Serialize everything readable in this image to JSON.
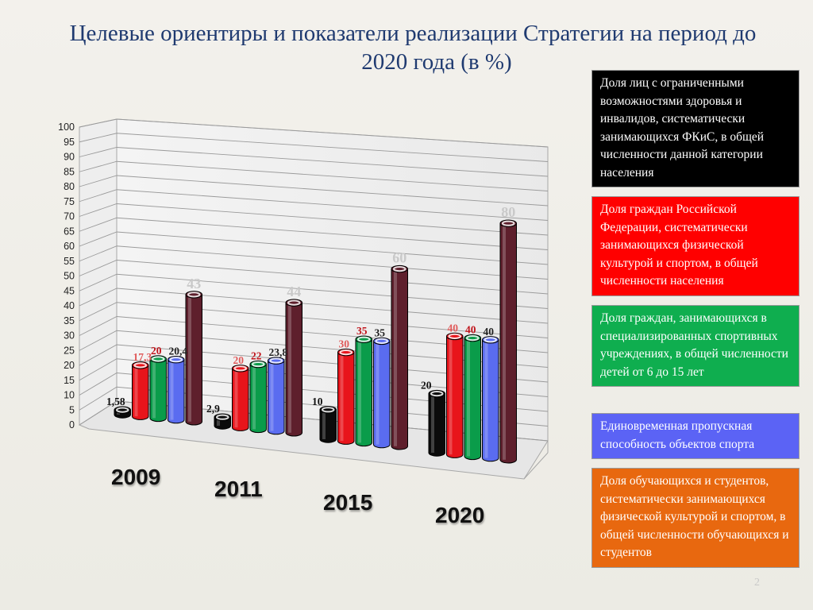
{
  "title": {
    "line1": "Целевые ориентиры и показатели реализации Стратегии на период до",
    "line2": "2020 года (в %)"
  },
  "colors": {
    "black": "#0b0b0b",
    "red": "#e8141b",
    "green": "#0a9c4a",
    "blue": "#5a6cf0",
    "maroon": "#5e1f2c",
    "orange": "#e86b0c"
  },
  "legend": [
    {
      "text": "Доля лиц с ограниченными возможностями здоровья и инвалидов, систематически занимающихся ФКиС, в общей численности данной категории населения",
      "color": "#000000"
    },
    {
      "text": "Доля граждан Российской Федерации, систематически занимающихся физической культурой и спортом, в общей численности населения",
      "color": "#ff0000"
    },
    {
      "text": "Доля граждан, занимающихся в специализированных спортивных учреждениях, в общей численности детей  от 6 до 15 лет",
      "color": "#0fae4f"
    },
    {
      "text": "Единовременная пропускная способность объектов спорта",
      "color": "#5b63f5"
    },
    {
      "text": "Доля обучающихся и студентов, систематически занимающихся физической культурой и спортом, в общей численности обучающихся и студентов",
      "color": "#e8680f"
    }
  ],
  "page_number": "2",
  "chart_data": {
    "type": "bar",
    "categories": [
      "2009",
      "2011",
      "2015",
      "2020"
    ],
    "ylim": [
      0,
      100
    ],
    "y_ticks": [
      "0",
      "5",
      "10",
      "15",
      "20",
      "25",
      "30",
      "35",
      "40",
      "45",
      "50",
      "55",
      "60",
      "65",
      "70",
      "75",
      "80",
      "85",
      "90",
      "95",
      "100"
    ],
    "grid": true,
    "legend_position": "right",
    "series": [
      {
        "values": [
          1.58,
          2.9,
          10,
          20
        ],
        "labels": [
          "1,58",
          "2,9",
          "10",
          "20"
        ],
        "color": "#0b0b0b",
        "label_color": "#111111"
      },
      {
        "values": [
          17.3,
          20,
          30,
          40
        ],
        "labels": [
          "17,3",
          "20",
          "30",
          "40"
        ],
        "color": "#e8141b",
        "label_color": "#e05a5a"
      },
      {
        "values": [
          20,
          22,
          35,
          40
        ],
        "labels": [
          "20",
          "22",
          "35",
          "40"
        ],
        "color": "#0a9c4a",
        "label_color": "#c0141b"
      },
      {
        "values": [
          20.4,
          23.8,
          35,
          40
        ],
        "labels": [
          "20,4",
          "23,8",
          "35",
          "40"
        ],
        "color": "#5a6cf0",
        "label_color": "#222222"
      },
      {
        "values": [
          43,
          44,
          60,
          80
        ],
        "labels": [
          "43",
          "44",
          "60",
          "80"
        ],
        "color": "#5e1f2c",
        "label_color": "#c9c9c9"
      }
    ]
  }
}
